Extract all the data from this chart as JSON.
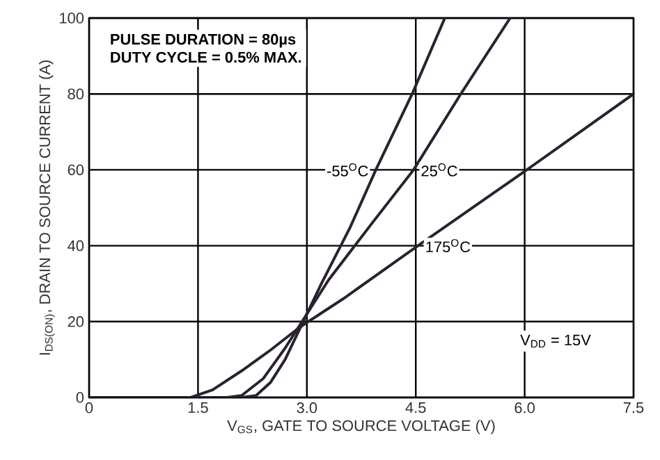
{
  "chart_data": {
    "type": "line",
    "xlabel": "V$_{GS}$, GATE TO SOURCE VOLTAGE (V)",
    "ylabel": "I$_{DS(ON)}$, DRAIN TO SOURCE CURRENT (A)",
    "xlim": [
      0,
      7.5
    ],
    "ylim": [
      0,
      100
    ],
    "xticks": [
      0,
      1.5,
      {
        "value": 3,
        "label": "3.0"
      },
      4.5,
      {
        "value": 6,
        "label": "6.0"
      },
      7.5
    ],
    "yticks": [
      0,
      20,
      40,
      60,
      80,
      100
    ],
    "grid": true,
    "legend": false,
    "marker": "none",
    "line_style": "solid",
    "series": [
      {
        "name": "-55$^{O}$C",
        "color": "#2a2230",
        "x": [
          0,
          2.1,
          2.3,
          2.5,
          2.7,
          2.9,
          3.2,
          3.6,
          3.95,
          4.45,
          4.9
        ],
        "values": [
          0,
          0,
          0.5,
          4,
          10,
          18,
          30,
          45,
          60,
          80,
          100
        ]
      },
      {
        "name": "25$^{O}$C",
        "color": "#2a2230",
        "x": [
          0,
          1.9,
          2.1,
          2.4,
          2.7,
          2.9,
          3.3,
          3.9,
          4.47,
          5.12,
          5.8
        ],
        "values": [
          0,
          0,
          0.5,
          5,
          13,
          19,
          31,
          46,
          60,
          80,
          100
        ]
      },
      {
        "name": "175$^{O}$C",
        "color": "#2a2230",
        "x": [
          0,
          1.4,
          1.7,
          2.1,
          2.5,
          2.9,
          3.5,
          4.53,
          6.03,
          7.5
        ],
        "values": [
          0,
          0,
          2,
          7,
          12.5,
          18.5,
          26,
          40,
          60,
          80
        ]
      }
    ],
    "annotations": [
      "PULSE DURATION = 80µs",
      "DUTY CYCLE = 0.5% MAX.",
      "V$_{DD}$ = 15V"
    ]
  }
}
